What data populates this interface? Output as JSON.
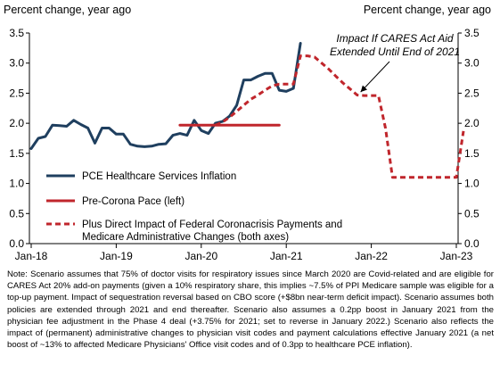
{
  "chart_data": {
    "type": "line",
    "y_unit_left": "Percent change, year ago",
    "y_unit_right": "Percent change, year ago",
    "ylim": [
      0.0,
      3.5
    ],
    "yticks": [
      "0.0",
      "0.5",
      "1.0",
      "1.5",
      "2.0",
      "2.5",
      "3.0",
      "3.5"
    ],
    "xticks": [
      "Jan-18",
      "Jan-19",
      "Jan-20",
      "Jan-21",
      "Jan-22",
      "Jan-23"
    ],
    "grid": false,
    "legend_position": "bottom-left",
    "annotation": {
      "lines": [
        "Impact If CARES Act Aid",
        "Extended Until End of 2021"
      ],
      "arrow_to": "2021-12"
    },
    "series": [
      {
        "name": "PCE Healthcare Services Inflation",
        "color": "#1f3f5f",
        "style": "solid",
        "points": [
          [
            "2018-01",
            1.58
          ],
          [
            "2018-02",
            1.75
          ],
          [
            "2018-03",
            1.78
          ],
          [
            "2018-04",
            1.97
          ],
          [
            "2018-05",
            1.96
          ],
          [
            "2018-06",
            1.95
          ],
          [
            "2018-07",
            2.05
          ],
          [
            "2018-08",
            1.98
          ],
          [
            "2018-09",
            1.92
          ],
          [
            "2018-10",
            1.67
          ],
          [
            "2018-11",
            1.92
          ],
          [
            "2018-12",
            1.92
          ],
          [
            "2019-01",
            1.82
          ],
          [
            "2019-02",
            1.82
          ],
          [
            "2019-03",
            1.65
          ],
          [
            "2019-04",
            1.62
          ],
          [
            "2019-05",
            1.61
          ],
          [
            "2019-06",
            1.62
          ],
          [
            "2019-07",
            1.65
          ],
          [
            "2019-08",
            1.66
          ],
          [
            "2019-09",
            1.8
          ],
          [
            "2019-10",
            1.83
          ],
          [
            "2019-11",
            1.8
          ],
          [
            "2019-12",
            2.05
          ],
          [
            "2020-01",
            1.88
          ],
          [
            "2020-02",
            1.83
          ],
          [
            "2020-03",
            2.0
          ],
          [
            "2020-04",
            2.03
          ],
          [
            "2020-05",
            2.12
          ],
          [
            "2020-06",
            2.3
          ],
          [
            "2020-07",
            2.72
          ],
          [
            "2020-08",
            2.72
          ],
          [
            "2020-09",
            2.78
          ],
          [
            "2020-10",
            2.83
          ],
          [
            "2020-11",
            2.83
          ],
          [
            "2020-12",
            2.55
          ],
          [
            "2021-01",
            2.53
          ],
          [
            "2021-02",
            2.58
          ],
          [
            "2021-03",
            3.33
          ]
        ]
      },
      {
        "name": "Pre-Corona Pace (left)",
        "color": "#c0262c",
        "style": "solid",
        "points": [
          [
            "2019-10",
            1.97
          ],
          [
            "2020-12",
            1.97
          ]
        ]
      },
      {
        "name": "Plus Direct Impact of Federal Coronacrisis Payments and Medicare Administrative Changes (both axes)",
        "legend_lines": [
          "Plus Direct Impact of Federal Coronacrisis Payments and",
          "Medicare Administrative Changes (both axes)"
        ],
        "color": "#c0262c",
        "style": "dashed",
        "points": [
          [
            "2020-03",
            1.97
          ],
          [
            "2020-04",
            2.02
          ],
          [
            "2020-05",
            2.1
          ],
          [
            "2020-06",
            2.2
          ],
          [
            "2020-07",
            2.3
          ],
          [
            "2020-08",
            2.4
          ],
          [
            "2020-09",
            2.47
          ],
          [
            "2020-10",
            2.55
          ],
          [
            "2020-11",
            2.62
          ],
          [
            "2020-12",
            2.65
          ],
          [
            "2021-01",
            2.65
          ],
          [
            "2021-02",
            2.65
          ],
          [
            "2021-03",
            3.12
          ],
          [
            "2021-04",
            3.12
          ],
          [
            "2021-05",
            3.1
          ],
          [
            "2021-06",
            3.0
          ],
          [
            "2021-07",
            2.9
          ],
          [
            "2021-08",
            2.78
          ],
          [
            "2021-09",
            2.67
          ],
          [
            "2021-10",
            2.57
          ],
          [
            "2021-11",
            2.47
          ],
          [
            "2021-12",
            2.46
          ],
          [
            "2022-01",
            2.46
          ],
          [
            "2022-02",
            2.46
          ],
          [
            "2022-03",
            1.92
          ],
          [
            "2022-04",
            1.1
          ],
          [
            "2022-05",
            1.1
          ],
          [
            "2022-06",
            1.1
          ],
          [
            "2022-07",
            1.1
          ],
          [
            "2022-08",
            1.1
          ],
          [
            "2022-09",
            1.1
          ],
          [
            "2022-10",
            1.1
          ],
          [
            "2022-11",
            1.1
          ],
          [
            "2022-12",
            1.1
          ],
          [
            "2023-01",
            1.1
          ],
          [
            "2023-02",
            1.87
          ]
        ]
      }
    ]
  },
  "note": "Note: Scenario assumes that 75% of doctor visits for respiratory issues since March 2020 are Covid-related and are eligible for CARES Act 20% add-on payments (given a 10% respiratory share, this implies ~7.5% of PPI Medicare sample was eligible for a top-up payment. Impact of sequestration reversal based on CBO score (+$8bn near-term deficit impact). Scenario assumes both policies are extended through 2021 and end thereafter. Scenario also assumes a 0.2pp boost in January 2021 from the physician fee adjustment in the Phase 4 deal (+3.75% for 2021; set to reverse in January 2022.) Scenario also reflects the impact of (permanent) administrative changes to physician visit codes and payment calculations effective January 2021 (a net boost of ~13% to affected Medicare Physicians' Office visit codes and of 0.3pp to healthcare PCE inflation)."
}
